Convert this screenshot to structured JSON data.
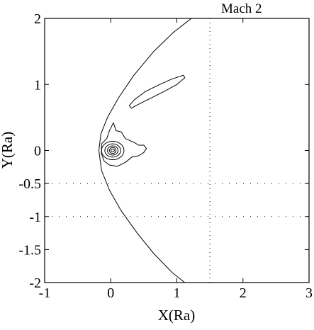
{
  "chart_data": {
    "type": "contour",
    "title": "Mach 2",
    "xlabel": "X(Ra)",
    "ylabel": "Y(Ra)",
    "xlim": [
      -1,
      3
    ],
    "ylim": [
      -2,
      2
    ],
    "xticks": [
      -1,
      0,
      1,
      2,
      3
    ],
    "xtick_labels": [
      "-1",
      "0",
      "1",
      "2",
      "3"
    ],
    "yticks": [
      2,
      1,
      0,
      -0.5,
      -1,
      -1.5,
      -2
    ],
    "ytick_labels": [
      "2",
      "1",
      "0",
      "-0.5",
      "-1",
      "-1.5",
      "-2"
    ],
    "grid": false,
    "reference_lines": [
      {
        "orientation": "vertical",
        "x": 1.5,
        "style": "dotted"
      },
      {
        "orientation": "horizontal",
        "y": -0.5,
        "style": "dotted"
      },
      {
        "orientation": "horizontal",
        "y": -1.0,
        "style": "dotted"
      }
    ],
    "contours": [
      {
        "name": "bow-shock",
        "closed": false,
        "points": [
          [
            1.22,
            2.0
          ],
          [
            0.95,
            1.79
          ],
          [
            0.65,
            1.5
          ],
          [
            0.35,
            1.14
          ],
          [
            0.12,
            0.8
          ],
          [
            -0.05,
            0.5
          ],
          [
            -0.15,
            0.25
          ],
          [
            -0.18,
            0.0
          ],
          [
            -0.14,
            -0.3
          ],
          [
            -0.02,
            -0.6
          ],
          [
            0.15,
            -0.9
          ],
          [
            0.4,
            -1.25
          ],
          [
            0.65,
            -1.56
          ],
          [
            0.93,
            -1.85
          ],
          [
            1.12,
            -2.0
          ]
        ]
      },
      {
        "name": "tail-lobe",
        "closed": true,
        "points": [
          [
            0.28,
            0.68
          ],
          [
            0.36,
            0.77
          ],
          [
            0.52,
            0.89
          ],
          [
            0.72,
            0.99
          ],
          [
            0.92,
            1.08
          ],
          [
            1.1,
            1.14
          ],
          [
            1.12,
            1.1
          ],
          [
            1.0,
            1.0
          ],
          [
            0.82,
            0.9
          ],
          [
            0.62,
            0.8
          ],
          [
            0.44,
            0.71
          ],
          [
            0.31,
            0.64
          ]
        ]
      },
      {
        "name": "inner-region",
        "closed": true,
        "points": [
          [
            0.04,
            0.42
          ],
          [
            0.08,
            0.3
          ],
          [
            0.16,
            0.28
          ],
          [
            0.22,
            0.18
          ],
          [
            0.36,
            0.12
          ],
          [
            0.42,
            0.08
          ],
          [
            0.5,
            0.08
          ],
          [
            0.54,
            0.03
          ],
          [
            0.5,
            -0.03
          ],
          [
            0.42,
            -0.08
          ],
          [
            0.32,
            -0.1
          ],
          [
            0.22,
            -0.18
          ],
          [
            0.1,
            -0.24
          ],
          [
            -0.02,
            -0.22
          ],
          [
            -0.1,
            -0.16
          ],
          [
            -0.14,
            -0.05
          ],
          [
            -0.14,
            0.1
          ],
          [
            -0.06,
            0.18
          ],
          [
            -0.02,
            0.3
          ]
        ]
      },
      {
        "name": "core-ring-1",
        "closed": true,
        "ellipse": {
          "cx": 0.03,
          "cy": 0.0,
          "rx": 0.17,
          "ry": 0.14
        }
      },
      {
        "name": "core-ring-2",
        "closed": true,
        "ellipse": {
          "cx": 0.03,
          "cy": 0.0,
          "rx": 0.12,
          "ry": 0.1
        }
      },
      {
        "name": "core-ring-3",
        "closed": true,
        "ellipse": {
          "cx": 0.03,
          "cy": 0.0,
          "rx": 0.08,
          "ry": 0.07
        }
      },
      {
        "name": "core-ring-4",
        "closed": true,
        "ellipse": {
          "cx": 0.03,
          "cy": 0.0,
          "rx": 0.05,
          "ry": 0.045
        }
      },
      {
        "name": "core-ring-5",
        "closed": true,
        "ellipse": {
          "cx": 0.03,
          "cy": 0.0,
          "rx": 0.025,
          "ry": 0.022
        }
      }
    ]
  }
}
